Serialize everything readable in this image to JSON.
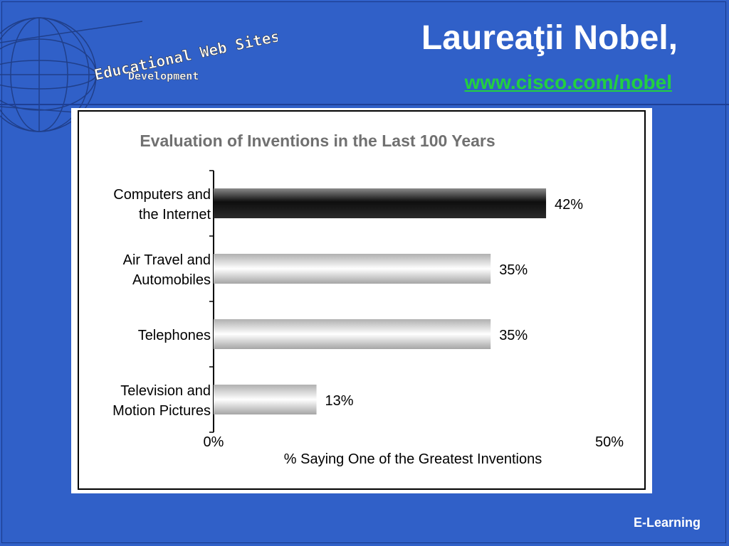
{
  "slide": {
    "logo_line1": "Educational Web Sites",
    "logo_line2": "Development",
    "title": "Laureaţii Nobel,",
    "link": "www.cisco.com/nobel",
    "footer": "E-Learning"
  },
  "chart_data": {
    "type": "bar",
    "orientation": "horizontal",
    "title": "Evaluation of Inventions in the Last 100 Years",
    "xlabel": "% Saying One of the Greatest Inventions",
    "ylabel": "",
    "xlim": [
      0,
      50
    ],
    "x_ticks": [
      "0%",
      "50%"
    ],
    "categories": [
      [
        "Computers and",
        "the Internet"
      ],
      [
        "Air Travel and",
        "Automobiles"
      ],
      [
        "Telephones"
      ],
      [
        "Television and",
        "Motion Pictures"
      ]
    ],
    "values": [
      42,
      35,
      35,
      13
    ],
    "value_labels": [
      "42%",
      "35%",
      "35%",
      "13%"
    ],
    "highlight_index": 0,
    "grid": false,
    "legend": "none"
  }
}
